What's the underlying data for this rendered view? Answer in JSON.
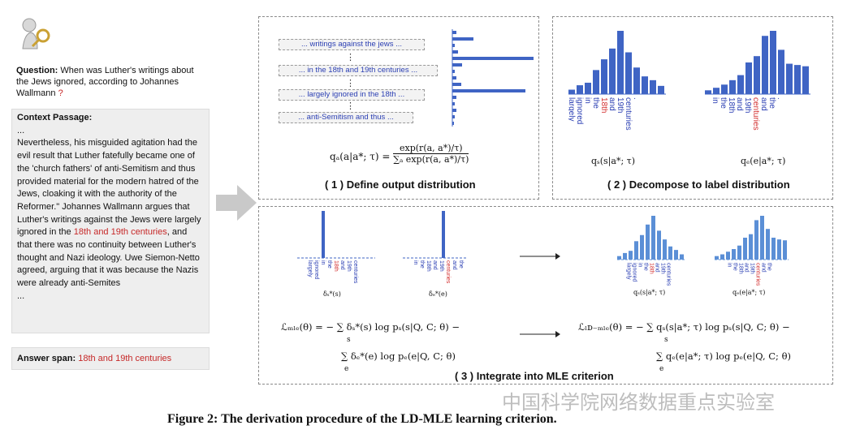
{
  "question": {
    "label": "Question:",
    "text": "When was Luther's writings about the Jews ignored, according to Johannes Wallmann",
    "mark": "?"
  },
  "context": {
    "title": "Context Passage:",
    "ellipsis_top": "...",
    "part1": "Nevertheless, his misguided agitation had the evil result that Luther fatefully became one of the 'church fathers' of anti-Semitism and thus provided material for the modern hatred of the Jews, cloaking it with the authority of the Reformer.\" Johannes Wallmann argues that Luther's writings against the Jews were largely ignored in the",
    "highlight": "18th and 19th centuries",
    "part2": ", and that there was no continuity between Luther's thought and Nazi ideology. Uwe Siemon-Netto agreed, arguing that it was because the Nazis were already anti-Semites",
    "ellipsis_bottom": "..."
  },
  "answer": {
    "label": "Answer span:",
    "value": "18th and 19th centuries"
  },
  "panel1": {
    "segments": [
      "... writings against the jews ...",
      "... in the 18th and 19th centuries ...",
      "... largely ignored in the 18th ...",
      "... anti-Semitism and thus ..."
    ],
    "dots": "⋮",
    "formula_lhs": "qₐ(a|a*; τ) =",
    "formula_num": "exp(r(a, a*)/τ)",
    "formula_den": "∑ₐ exp(r(a, a*)/τ)",
    "title": "( 1 )  Define output distribution",
    "bar_values": [
      0.05,
      0.26,
      0.03,
      0.07,
      1.0,
      0.12,
      0.03,
      0.05,
      0.11,
      0.9,
      0.05,
      0.03,
      0.05,
      0.03,
      0.02
    ]
  },
  "panel2": {
    "start_words": [
      "largely",
      "ignored",
      "in",
      "the",
      "18th",
      "and",
      "19th",
      "centuries",
      "."
    ],
    "end_words": [
      "in",
      "the",
      "18th",
      "and",
      "19th",
      "centuries",
      "and",
      "the",
      "."
    ],
    "start_highlight_index": 4,
    "end_highlight_index": 5,
    "start_values": [
      0.07,
      0.14,
      0.18,
      0.38,
      0.55,
      0.72,
      1.0,
      0.66,
      0.42,
      0.28,
      0.22,
      0.13
    ],
    "end_values": [
      0.06,
      0.1,
      0.15,
      0.22,
      0.3,
      0.5,
      0.6,
      0.92,
      1.0,
      0.7,
      0.48,
      0.46,
      0.44
    ],
    "start_formula": "qₛ(s|a*; τ)",
    "end_formula": "qₑ(e|a*; τ)",
    "title": "( 2 )  Decompose to label distribution"
  },
  "panel3": {
    "start_words": [
      "largely",
      "ignored",
      "in",
      "the",
      "18th",
      "and",
      "19th",
      "centuries"
    ],
    "end_words": [
      "in",
      "the",
      "18th",
      "and",
      "19th",
      "centuries",
      "and",
      "the"
    ],
    "delta_start_label": "δₛ*(s)",
    "delta_end_label": "δₑ*(e)",
    "qs_label": "qₛ(s|a*; τ)",
    "qe_label": "qₑ(e|a*; τ)",
    "smooth_start_values": [
      0.08,
      0.15,
      0.2,
      0.42,
      0.56,
      0.8,
      1.0,
      0.66,
      0.46,
      0.3,
      0.22,
      0.12
    ],
    "smooth_end_values": [
      0.08,
      0.12,
      0.18,
      0.24,
      0.32,
      0.5,
      0.58,
      0.9,
      1.0,
      0.7,
      0.5,
      0.46,
      0.44
    ],
    "mle_line1": "ℒₘₗₑ(θ) = − ∑ δₛ*(s) log pₛ(s|Q, C; θ) −",
    "mle_line2": "∑ δₑ*(e) log pₑ(e|Q, C; θ)",
    "ldmle_line1": "ℒₗᴅ₋ₘₗₑ(θ) = − ∑ qₛ(s|a*; τ) log pₛ(s|Q, C; θ) −",
    "ldmle_line2": "∑ qₑ(e|a*; τ) log pₑ(e|Q, C; θ)",
    "sum_s": "s",
    "sum_e": "e",
    "title": "( 3 )  Integrate into MLE criterion"
  },
  "watermark": "中国科学院网络数据重点实验室",
  "caption": "Figure 2: The derivation procedure of the LD-MLE learning criterion.",
  "colors": {
    "bar": "#3f64c4",
    "bar_light": "#5b8fd6",
    "highlight": "#d32f2f",
    "word": "#2b3fb3"
  }
}
